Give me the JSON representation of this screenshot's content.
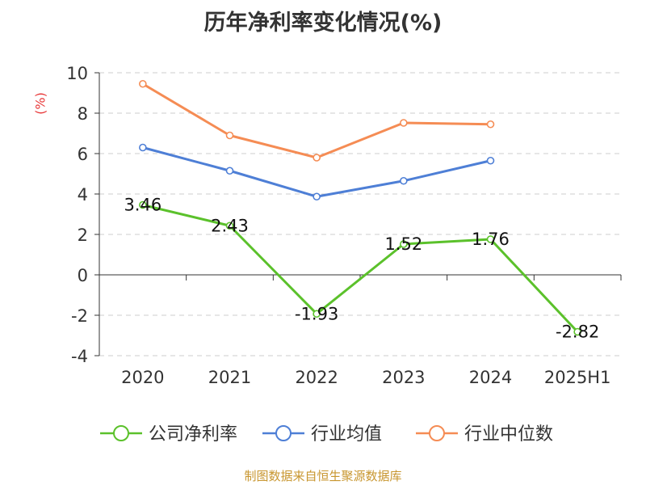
{
  "chart_data": {
    "type": "line",
    "title": "历年净利率变化情况(%)",
    "ylabel": "(%)",
    "xlabel": "",
    "categories": [
      "2020",
      "2021",
      "2022",
      "2023",
      "2024",
      "2025H1"
    ],
    "ylim": [
      -4,
      10
    ],
    "yticks": [
      "10",
      "8",
      "6",
      "4",
      "2",
      "0",
      "-2",
      "-4"
    ],
    "grid": true,
    "legend_position": "bottom",
    "series": [
      {
        "name": "公司净利率",
        "color": "#5bc12b",
        "values": [
          3.46,
          2.43,
          -1.93,
          1.52,
          1.76,
          -2.82
        ],
        "labels": [
          "3.46",
          "2.43",
          "-1.93",
          "1.52",
          "1.76",
          "-2.82"
        ]
      },
      {
        "name": "行业均值",
        "color": "#4e7fd6",
        "values": [
          6.3,
          5.15,
          3.87,
          4.65,
          5.65,
          null
        ],
        "labels": null
      },
      {
        "name": "行业中位数",
        "color": "#f58c54",
        "values": [
          9.45,
          6.9,
          5.8,
          7.52,
          7.45,
          null
        ],
        "labels": null
      }
    ]
  },
  "source": "制图数据来自恒生聚源数据库"
}
